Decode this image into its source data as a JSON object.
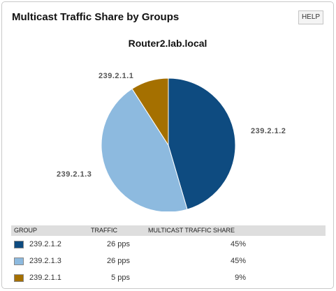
{
  "header": {
    "title": "Multicast Traffic Share by Groups",
    "help_label": "HELP"
  },
  "chart_data": {
    "type": "pie",
    "title": "Router2.lab.local",
    "slices": [
      {
        "label": "239.2.1.2",
        "value": 45,
        "color": "#0e4b80"
      },
      {
        "label": "239.2.1.3",
        "value": 45,
        "color": "#8dbadf"
      },
      {
        "label": "239.2.1.1",
        "value": 9,
        "color": "#a57000"
      }
    ]
  },
  "table": {
    "columns": [
      "GROUP",
      "TRAFFIC",
      "MULTICAST TRAFFIC SHARE"
    ],
    "rows": [
      {
        "group": "239.2.1.2",
        "traffic": "26 pps",
        "share": "45%",
        "color": "#0e4b80"
      },
      {
        "group": "239.2.1.3",
        "traffic": "26 pps",
        "share": "45%",
        "color": "#8dbadf"
      },
      {
        "group": "239.2.1.1",
        "traffic": "5 pps",
        "share": "9%",
        "color": "#a57000"
      }
    ]
  }
}
